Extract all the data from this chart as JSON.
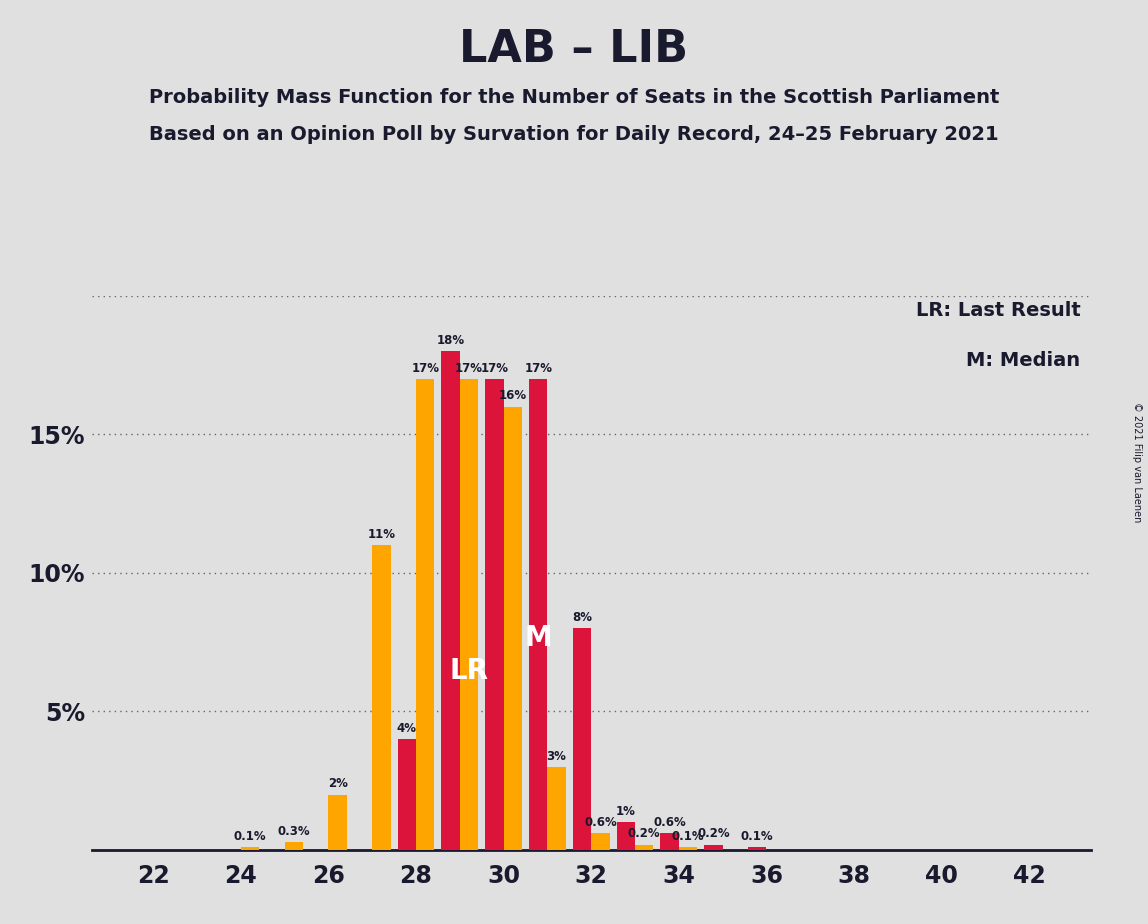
{
  "title": "LAB – LIB",
  "subtitle1": "Probability Mass Function for the Number of Seats in the Scottish Parliament",
  "subtitle2": "Based on an Opinion Poll by Survation for Daily Record, 24–25 February 2021",
  "copyright": "© 2021 Filip van Laenen",
  "legend_lr": "LR: Last Result",
  "legend_m": "M: Median",
  "seats": [
    22,
    23,
    24,
    25,
    26,
    27,
    28,
    29,
    30,
    31,
    32,
    33,
    34,
    35,
    36,
    37,
    38,
    39,
    40,
    41,
    42
  ],
  "lab_values": [
    0.0,
    0.0,
    0.0,
    0.0,
    0.0,
    0.0,
    4.0,
    18.0,
    17.0,
    17.0,
    8.0,
    1.0,
    0.6,
    0.2,
    0.1,
    0.0,
    0.0,
    0.0,
    0.0,
    0.0,
    0.0
  ],
  "lib_values": [
    0.0,
    0.0,
    0.1,
    0.3,
    2.0,
    11.0,
    17.0,
    17.0,
    16.0,
    3.0,
    0.6,
    0.2,
    0.1,
    0.0,
    0.0,
    0.0,
    0.0,
    0.0,
    0.0,
    0.0,
    0.0
  ],
  "lab_color": "#DC143C",
  "lib_color": "#FFA500",
  "title_color": "#1a1a2e",
  "background_color": "#e0e0e0",
  "lr_seat": 29,
  "lr_bar": "lib",
  "median_seat": 31,
  "median_bar": "lab",
  "xlabel_ticks": [
    22,
    24,
    26,
    28,
    30,
    32,
    34,
    36,
    38,
    40,
    42
  ],
  "ylim_max": 20,
  "yticks": [
    0,
    5,
    10,
    15,
    20
  ],
  "ytick_labels": [
    "",
    "5%",
    "10%",
    "15%",
    ""
  ]
}
